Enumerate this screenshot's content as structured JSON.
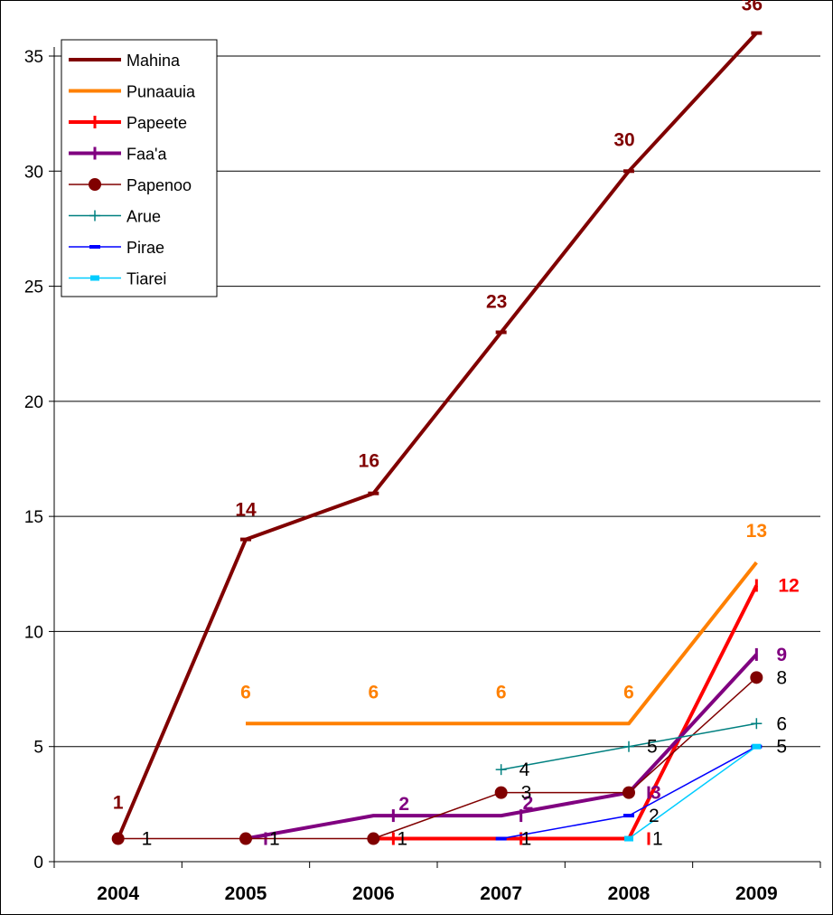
{
  "chart_data": {
    "type": "line",
    "categories": [
      "2004",
      "2005",
      "2006",
      "2007",
      "2008",
      "2009"
    ],
    "ylim": [
      0,
      35
    ],
    "yticks": [
      0,
      5,
      10,
      15,
      20,
      25,
      30,
      35
    ],
    "grid": true,
    "legend_position": "top-left",
    "series": [
      {
        "name": "Mahina",
        "color": "#800000",
        "marker": "dash",
        "width": 4,
        "bold_labels": true,
        "values": [
          1,
          14,
          16,
          23,
          30,
          36
        ]
      },
      {
        "name": "Punaauia",
        "color": "#FF8000",
        "marker": "none",
        "width": 4,
        "bold_labels": true,
        "values": [
          null,
          6,
          6,
          6,
          6,
          13
        ]
      },
      {
        "name": "Papeete",
        "color": "#FF0000",
        "marker": "bar",
        "width": 4,
        "bold_labels": true,
        "values": [
          null,
          null,
          1,
          1,
          1,
          12
        ]
      },
      {
        "name": "Faa'a",
        "color": "#800080",
        "marker": "bar",
        "width": 4,
        "bold_labels": true,
        "values": [
          null,
          1,
          2,
          2,
          3,
          9
        ]
      },
      {
        "name": "Papenoo",
        "color": "#800000",
        "marker": "circle",
        "width": 1.5,
        "bold_labels": false,
        "values": [
          1,
          1,
          1,
          3,
          3,
          8
        ]
      },
      {
        "name": "Arue",
        "color": "#008080",
        "marker": "plus",
        "width": 1.5,
        "bold_labels": false,
        "values": [
          null,
          null,
          null,
          4,
          5,
          6
        ]
      },
      {
        "name": "Pirae",
        "color": "#0000FF",
        "marker": "dash",
        "width": 1.5,
        "bold_labels": false,
        "values": [
          null,
          null,
          null,
          1,
          2,
          5
        ]
      },
      {
        "name": "Tiarei",
        "color": "#00CCFF",
        "marker": "square",
        "width": 1.5,
        "bold_labels": false,
        "values": [
          null,
          null,
          null,
          null,
          1,
          5
        ]
      }
    ],
    "data_labels": [
      {
        "series": "Mahina",
        "x": "2004",
        "value": 1,
        "text": "1"
      },
      {
        "series": "Mahina",
        "x": "2005",
        "value": 14,
        "text": "14"
      },
      {
        "series": "Mahina",
        "x": "2006",
        "value": 16,
        "text": "16"
      },
      {
        "series": "Mahina",
        "x": "2007",
        "value": 23,
        "text": "23"
      },
      {
        "series": "Mahina",
        "x": "2008",
        "value": 30,
        "text": "30"
      },
      {
        "series": "Mahina",
        "x": "2009",
        "value": 36,
        "text": "36"
      },
      {
        "series": "Punaauia",
        "x": "2005",
        "value": 6,
        "text": "6"
      },
      {
        "series": "Punaauia",
        "x": "2006",
        "value": 6,
        "text": "6"
      },
      {
        "series": "Punaauia",
        "x": "2007",
        "value": 6,
        "text": "6"
      },
      {
        "series": "Punaauia",
        "x": "2008",
        "value": 6,
        "text": "6"
      },
      {
        "series": "Punaauia",
        "x": "2009",
        "value": 13,
        "text": "13"
      },
      {
        "series": "Papeete",
        "x": "2009",
        "value": 12,
        "text": "12"
      },
      {
        "series": "Faa'a",
        "x": "2006",
        "value": 2,
        "text": "2"
      },
      {
        "series": "Faa'a",
        "x": "2007",
        "value": 2,
        "text": "2"
      },
      {
        "series": "Faa'a",
        "x": "2008",
        "value": 3,
        "text": "3"
      },
      {
        "series": "Faa'a",
        "x": "2009",
        "value": 9,
        "text": "9"
      },
      {
        "series": "Papenoo",
        "x": "2004",
        "value": 1,
        "text": "1"
      },
      {
        "series": "Papenoo",
        "x": "2005",
        "value": 1,
        "text": "1"
      },
      {
        "series": "Papenoo",
        "x": "2006",
        "value": 1,
        "text": "1"
      },
      {
        "series": "Papenoo",
        "x": "2007",
        "value": 3,
        "text": "3"
      },
      {
        "series": "Papenoo",
        "x": "2009",
        "value": 8,
        "text": "8"
      },
      {
        "series": "Arue",
        "x": "2007",
        "value": 4,
        "text": "4"
      },
      {
        "series": "Arue",
        "x": "2008",
        "value": 5,
        "text": "5"
      },
      {
        "series": "Arue",
        "x": "2009",
        "value": 6,
        "text": "6"
      },
      {
        "series": "Pirae",
        "x": "2007",
        "value": 1,
        "text": "1"
      },
      {
        "series": "Pirae",
        "x": "2008",
        "value": 2,
        "text": "2"
      },
      {
        "series": "Pirae",
        "x": "2009",
        "value": 5,
        "text": "5"
      },
      {
        "series": "Tiarei",
        "x": "2008",
        "value": 1,
        "text": "1"
      }
    ]
  }
}
